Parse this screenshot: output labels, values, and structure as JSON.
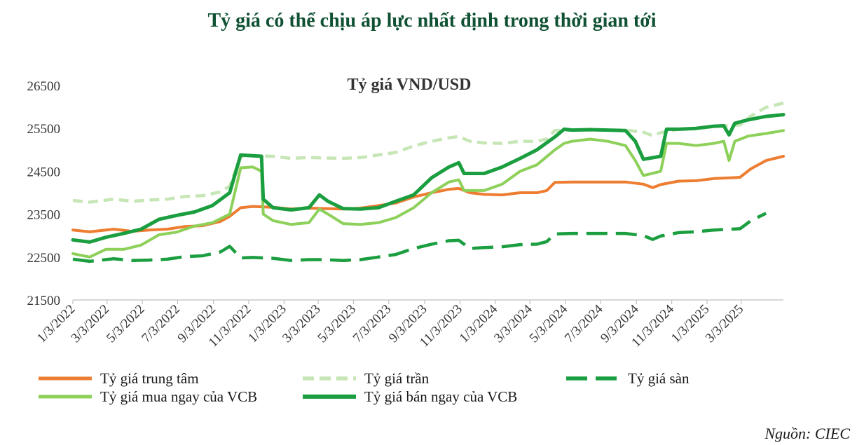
{
  "heading": "Tỷ giá có thể chịu áp lực nhất định trong thời gian tới",
  "source": "Nguồn: CIEC",
  "chart_data": {
    "type": "line",
    "title": "Tỷ giá VND/USD",
    "ylim": [
      21500,
      26500
    ],
    "yticks": [
      21500,
      22500,
      23500,
      24500,
      25500,
      26500
    ],
    "xlim": [
      "2022-01-03",
      "2025-05-15"
    ],
    "xticks": [
      "2022-01-03",
      "2022-03-03",
      "2022-05-03",
      "2022-07-03",
      "2022-09-03",
      "2022-11-03",
      "2023-01-03",
      "2023-03-03",
      "2023-05-03",
      "2023-07-03",
      "2023-09-03",
      "2023-11-03",
      "2024-01-03",
      "2024-03-03",
      "2024-05-03",
      "2024-07-03",
      "2024-09-03",
      "2024-11-03",
      "2025-01-03",
      "2025-03-03"
    ],
    "xtick_labels": [
      "1/3/2022",
      "3/3/2022",
      "5/3/2022",
      "7/3/2022",
      "9/3/2022",
      "11/3/2022",
      "1/3/2023",
      "3/3/2023",
      "5/3/2023",
      "7/3/2023",
      "9/3/2023",
      "11/3/2023",
      "1/3/2024",
      "3/3/2024",
      "5/3/2024",
      "7/3/2024",
      "9/3/2024",
      "11/3/2024",
      "1/3/2025",
      "3/3/2025"
    ],
    "grid": false,
    "legend": "bottom",
    "series": [
      {
        "name": "Tỷ giá trung tâm",
        "color": "#ed7d31",
        "style": "solid",
        "points": [
          [
            "2022-01-03",
            23130
          ],
          [
            "2022-02-01",
            23090
          ],
          [
            "2022-03-15",
            23150
          ],
          [
            "2022-04-15",
            23100
          ],
          [
            "2022-05-15",
            23130
          ],
          [
            "2022-06-15",
            23150
          ],
          [
            "2022-07-15",
            23210
          ],
          [
            "2022-08-15",
            23230
          ],
          [
            "2022-09-15",
            23330
          ],
          [
            "2022-10-01",
            23450
          ],
          [
            "2022-10-20",
            23650
          ],
          [
            "2022-11-10",
            23680
          ],
          [
            "2022-12-15",
            23660
          ],
          [
            "2023-01-15",
            23620
          ],
          [
            "2023-02-15",
            23640
          ],
          [
            "2023-03-15",
            23630
          ],
          [
            "2023-04-15",
            23620
          ],
          [
            "2023-05-15",
            23640
          ],
          [
            "2023-06-15",
            23700
          ],
          [
            "2023-07-15",
            23760
          ],
          [
            "2023-08-15",
            23900
          ],
          [
            "2023-09-15",
            24000
          ],
          [
            "2023-10-15",
            24080
          ],
          [
            "2023-11-01",
            24100
          ],
          [
            "2023-11-20",
            24000
          ],
          [
            "2023-12-15",
            23960
          ],
          [
            "2024-01-15",
            23950
          ],
          [
            "2024-02-15",
            24000
          ],
          [
            "2024-03-15",
            24000
          ],
          [
            "2024-04-01",
            24050
          ],
          [
            "2024-04-15",
            24240
          ],
          [
            "2024-05-15",
            24250
          ],
          [
            "2024-06-15",
            24250
          ],
          [
            "2024-07-15",
            24250
          ],
          [
            "2024-08-15",
            24250
          ],
          [
            "2024-09-15",
            24200
          ],
          [
            "2024-10-01",
            24120
          ],
          [
            "2024-10-15",
            24190
          ],
          [
            "2024-11-15",
            24270
          ],
          [
            "2024-12-15",
            24280
          ],
          [
            "2025-01-15",
            24330
          ],
          [
            "2025-02-15",
            24350
          ],
          [
            "2025-03-01",
            24360
          ],
          [
            "2025-03-20",
            24560
          ],
          [
            "2025-04-15",
            24750
          ],
          [
            "2025-05-15",
            24850
          ]
        ]
      },
      {
        "name": "Tỷ giá trần",
        "color": "#c6e6b6",
        "style": "dash",
        "points": [
          [
            "2022-01-03",
            23820
          ],
          [
            "2022-02-01",
            23780
          ],
          [
            "2022-03-15",
            23850
          ],
          [
            "2022-04-15",
            23800
          ],
          [
            "2022-05-15",
            23830
          ],
          [
            "2022-06-15",
            23850
          ],
          [
            "2022-07-15",
            23910
          ],
          [
            "2022-08-15",
            23930
          ],
          [
            "2022-09-15",
            24020
          ],
          [
            "2022-10-01",
            24150
          ],
          [
            "2022-10-20",
            24850
          ],
          [
            "2022-11-10",
            24860
          ],
          [
            "2022-12-15",
            24850
          ],
          [
            "2023-01-15",
            24800
          ],
          [
            "2023-02-15",
            24820
          ],
          [
            "2023-03-15",
            24810
          ],
          [
            "2023-04-15",
            24800
          ],
          [
            "2023-05-15",
            24820
          ],
          [
            "2023-06-15",
            24880
          ],
          [
            "2023-07-15",
            24940
          ],
          [
            "2023-08-15",
            25090
          ],
          [
            "2023-09-15",
            25200
          ],
          [
            "2023-10-15",
            25280
          ],
          [
            "2023-11-01",
            25310
          ],
          [
            "2023-11-20",
            25200
          ],
          [
            "2023-12-15",
            25160
          ],
          [
            "2024-01-15",
            25150
          ],
          [
            "2024-02-15",
            25200
          ],
          [
            "2024-03-15",
            25200
          ],
          [
            "2024-04-01",
            25250
          ],
          [
            "2024-04-15",
            25450
          ],
          [
            "2024-05-15",
            25460
          ],
          [
            "2024-06-15",
            25460
          ],
          [
            "2024-07-15",
            25460
          ],
          [
            "2024-08-15",
            25460
          ],
          [
            "2024-09-15",
            25410
          ],
          [
            "2024-10-01",
            25330
          ],
          [
            "2024-10-15",
            25400
          ],
          [
            "2024-11-15",
            25480
          ],
          [
            "2024-12-15",
            25500
          ],
          [
            "2025-01-15",
            25550
          ],
          [
            "2025-02-15",
            25570
          ],
          [
            "2025-03-01",
            25580
          ],
          [
            "2025-03-20",
            25790
          ],
          [
            "2025-04-15",
            25990
          ],
          [
            "2025-05-15",
            26090
          ]
        ]
      },
      {
        "name": "Tỷ giá sàn",
        "color": "#1a9e3f",
        "style": "dashed-bold",
        "points": [
          [
            "2022-01-03",
            22450
          ],
          [
            "2022-02-01",
            22400
          ],
          [
            "2022-03-15",
            22460
          ],
          [
            "2022-04-15",
            22420
          ],
          [
            "2022-05-15",
            22430
          ],
          [
            "2022-06-15",
            22450
          ],
          [
            "2022-07-15",
            22510
          ],
          [
            "2022-08-15",
            22530
          ],
          [
            "2022-09-15",
            22620
          ],
          [
            "2022-10-01",
            22750
          ],
          [
            "2022-10-20",
            22480
          ],
          [
            "2022-11-10",
            22490
          ],
          [
            "2022-12-15",
            22470
          ],
          [
            "2023-01-15",
            22420
          ],
          [
            "2023-02-15",
            22440
          ],
          [
            "2023-03-15",
            22440
          ],
          [
            "2023-04-15",
            22420
          ],
          [
            "2023-05-15",
            22440
          ],
          [
            "2023-06-15",
            22500
          ],
          [
            "2023-07-15",
            22560
          ],
          [
            "2023-08-15",
            22700
          ],
          [
            "2023-09-15",
            22800
          ],
          [
            "2023-10-15",
            22880
          ],
          [
            "2023-11-01",
            22890
          ],
          [
            "2023-11-20",
            22700
          ],
          [
            "2023-12-15",
            22720
          ],
          [
            "2024-01-15",
            22740
          ],
          [
            "2024-02-15",
            22790
          ],
          [
            "2024-03-15",
            22800
          ],
          [
            "2024-04-01",
            22860
          ],
          [
            "2024-04-15",
            23040
          ],
          [
            "2024-05-15",
            23050
          ],
          [
            "2024-06-15",
            23050
          ],
          [
            "2024-07-15",
            23050
          ],
          [
            "2024-08-15",
            23050
          ],
          [
            "2024-09-15",
            23000
          ],
          [
            "2024-10-01",
            22910
          ],
          [
            "2024-10-15",
            22990
          ],
          [
            "2024-11-15",
            23070
          ],
          [
            "2024-12-15",
            23090
          ],
          [
            "2025-01-15",
            23130
          ],
          [
            "2025-02-15",
            23150
          ],
          [
            "2025-03-01",
            23160
          ],
          [
            "2025-03-20",
            23350
          ],
          [
            "2025-04-15",
            23520
          ]
        ]
      },
      {
        "name": "Tỷ giá mua ngay của VCB",
        "color": "#8dd05a",
        "style": "solid",
        "points": [
          [
            "2022-01-03",
            22580
          ],
          [
            "2022-02-01",
            22500
          ],
          [
            "2022-03-01",
            22680
          ],
          [
            "2022-04-01",
            22680
          ],
          [
            "2022-05-01",
            22780
          ],
          [
            "2022-06-01",
            23020
          ],
          [
            "2022-07-01",
            23080
          ],
          [
            "2022-08-01",
            23220
          ],
          [
            "2022-09-01",
            23300
          ],
          [
            "2022-10-01",
            23500
          ],
          [
            "2022-10-20",
            24580
          ],
          [
            "2022-11-10",
            24600
          ],
          [
            "2022-11-25",
            24500
          ],
          [
            "2022-11-28",
            23500
          ],
          [
            "2022-12-15",
            23350
          ],
          [
            "2023-01-15",
            23260
          ],
          [
            "2023-02-15",
            23300
          ],
          [
            "2023-03-05",
            23620
          ],
          [
            "2023-03-20",
            23500
          ],
          [
            "2023-04-15",
            23280
          ],
          [
            "2023-05-15",
            23260
          ],
          [
            "2023-06-15",
            23300
          ],
          [
            "2023-07-15",
            23420
          ],
          [
            "2023-08-15",
            23650
          ],
          [
            "2023-09-15",
            24000
          ],
          [
            "2023-10-15",
            24250
          ],
          [
            "2023-11-01",
            24300
          ],
          [
            "2023-11-10",
            24050
          ],
          [
            "2023-12-15",
            24050
          ],
          [
            "2024-01-15",
            24200
          ],
          [
            "2024-02-15",
            24500
          ],
          [
            "2024-03-15",
            24650
          ],
          [
            "2024-04-15",
            25000
          ],
          [
            "2024-05-01",
            25150
          ],
          [
            "2024-05-15",
            25200
          ],
          [
            "2024-06-15",
            25250
          ],
          [
            "2024-07-15",
            25200
          ],
          [
            "2024-08-15",
            25100
          ],
          [
            "2024-09-01",
            24750
          ],
          [
            "2024-09-15",
            24400
          ],
          [
            "2024-10-15",
            24500
          ],
          [
            "2024-10-25",
            25150
          ],
          [
            "2024-11-15",
            25150
          ],
          [
            "2024-12-15",
            25100
          ],
          [
            "2025-01-15",
            25150
          ],
          [
            "2025-02-01",
            25200
          ],
          [
            "2025-02-10",
            24750
          ],
          [
            "2025-02-20",
            25200
          ],
          [
            "2025-03-15",
            25320
          ],
          [
            "2025-04-15",
            25380
          ],
          [
            "2025-05-15",
            25450
          ]
        ]
      },
      {
        "name": "Tỷ giá bán ngay của VCB",
        "color": "#1a9e3f",
        "style": "solid-bold",
        "points": [
          [
            "2022-01-03",
            22900
          ],
          [
            "2022-02-01",
            22850
          ],
          [
            "2022-03-01",
            22960
          ],
          [
            "2022-04-01",
            23050
          ],
          [
            "2022-05-01",
            23150
          ],
          [
            "2022-06-01",
            23380
          ],
          [
            "2022-07-01",
            23470
          ],
          [
            "2022-08-01",
            23550
          ],
          [
            "2022-09-01",
            23700
          ],
          [
            "2022-10-01",
            24000
          ],
          [
            "2022-10-20",
            24880
          ],
          [
            "2022-11-25",
            24850
          ],
          [
            "2022-11-28",
            23850
          ],
          [
            "2022-12-15",
            23650
          ],
          [
            "2023-01-15",
            23600
          ],
          [
            "2023-02-15",
            23650
          ],
          [
            "2023-03-05",
            23950
          ],
          [
            "2023-03-20",
            23800
          ],
          [
            "2023-04-15",
            23630
          ],
          [
            "2023-05-15",
            23620
          ],
          [
            "2023-06-15",
            23650
          ],
          [
            "2023-07-15",
            23800
          ],
          [
            "2023-08-15",
            23950
          ],
          [
            "2023-09-15",
            24350
          ],
          [
            "2023-10-15",
            24600
          ],
          [
            "2023-11-01",
            24700
          ],
          [
            "2023-11-10",
            24450
          ],
          [
            "2023-12-15",
            24450
          ],
          [
            "2024-01-15",
            24600
          ],
          [
            "2024-02-15",
            24800
          ],
          [
            "2024-03-15",
            25000
          ],
          [
            "2024-04-15",
            25300
          ],
          [
            "2024-05-01",
            25480
          ],
          [
            "2024-05-15",
            25460
          ],
          [
            "2024-06-15",
            25470
          ],
          [
            "2024-07-15",
            25460
          ],
          [
            "2024-08-15",
            25450
          ],
          [
            "2024-09-01",
            25200
          ],
          [
            "2024-09-15",
            24780
          ],
          [
            "2024-10-15",
            24850
          ],
          [
            "2024-10-25",
            25480
          ],
          [
            "2024-11-15",
            25480
          ],
          [
            "2024-12-15",
            25500
          ],
          [
            "2025-01-15",
            25550
          ],
          [
            "2025-02-01",
            25560
          ],
          [
            "2025-02-10",
            25350
          ],
          [
            "2025-02-20",
            25620
          ],
          [
            "2025-03-15",
            25700
          ],
          [
            "2025-04-15",
            25780
          ],
          [
            "2025-05-15",
            25820
          ]
        ]
      }
    ]
  }
}
